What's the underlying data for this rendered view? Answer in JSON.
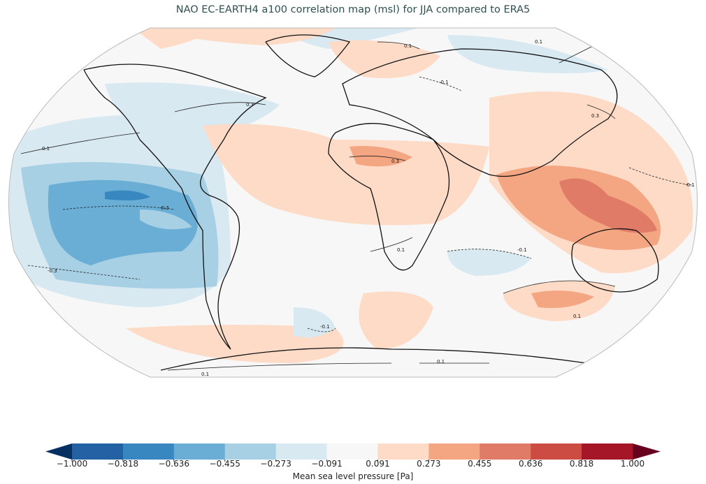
{
  "title": "NAO EC-EARTH4 a100 correlation map (msl) for JJA compared to ERA5",
  "projection": "Robinson",
  "colorbar": {
    "label": "Mean sea level pressure [Pa]",
    "ticks": [
      "−1.000",
      "−0.818",
      "−0.636",
      "−0.455",
      "−0.273",
      "−0.091",
      "0.091",
      "0.273",
      "0.455",
      "0.636",
      "0.818",
      "1.000"
    ],
    "colors": [
      "#2360a4",
      "#3987c0",
      "#6aaed6",
      "#a7d0e4",
      "#d9e9f2",
      "#f7f7f7",
      "#fddbc7",
      "#f4a582",
      "#e07b67",
      "#cc4c44",
      "#a51628"
    ],
    "under_color": "#053061",
    "over_color": "#67001f",
    "extend": "both"
  },
  "contour_labels": [
    "0.1",
    "-0.1",
    "0.3",
    "-0.3"
  ]
}
